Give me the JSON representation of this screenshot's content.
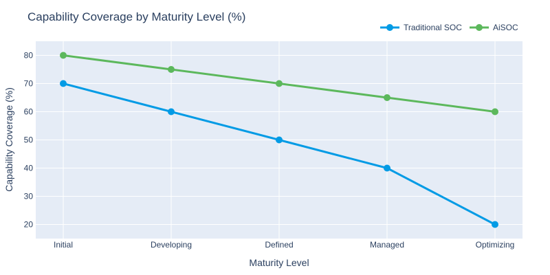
{
  "chart_data": {
    "type": "line",
    "title": "Capability Coverage by Maturity Level (%)",
    "xlabel": "Maturity Level",
    "ylabel": "Capability Coverage (%)",
    "categories": [
      "Initial",
      "Developing",
      "Defined",
      "Managed",
      "Optimizing"
    ],
    "ylim": [
      15,
      85
    ],
    "yticks": [
      20,
      30,
      40,
      50,
      60,
      70,
      80
    ],
    "grid": true,
    "legend_position": "top-right",
    "series": [
      {
        "name": "Traditional SOC",
        "color": "#039be5",
        "values": [
          70,
          60,
          50,
          40,
          20
        ]
      },
      {
        "name": "AiSOC",
        "color": "#5cb85c",
        "values": [
          80,
          75,
          70,
          65,
          60
        ]
      }
    ],
    "plot_background": "#e5ecf6"
  }
}
